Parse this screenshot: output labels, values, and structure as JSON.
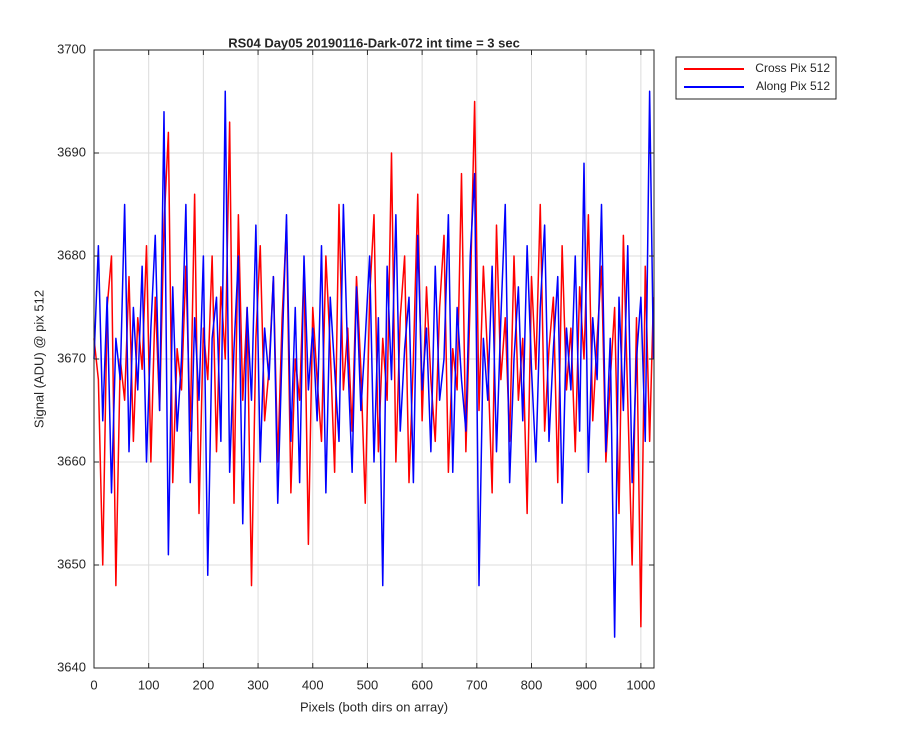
{
  "chart_data": {
    "type": "line",
    "title": "RS04 Day05 20190116-Dark-072 int time = 3 sec",
    "xlabel": "Pixels (both dirs on array)",
    "ylabel": "Signal (ADU) @ pix 512",
    "x": [
      0,
      8,
      16,
      24,
      32,
      40,
      48,
      56,
      64,
      72,
      80,
      88,
      96,
      104,
      112,
      120,
      128,
      136,
      144,
      152,
      160,
      168,
      176,
      184,
      192,
      200,
      208,
      216,
      224,
      232,
      240,
      248,
      256,
      264,
      272,
      280,
      288,
      296,
      304,
      312,
      320,
      328,
      336,
      344,
      352,
      360,
      368,
      376,
      384,
      392,
      400,
      408,
      416,
      424,
      432,
      440,
      448,
      456,
      464,
      472,
      480,
      488,
      496,
      504,
      512,
      520,
      528,
      536,
      544,
      552,
      560,
      568,
      576,
      584,
      592,
      600,
      608,
      616,
      624,
      632,
      640,
      648,
      656,
      664,
      672,
      680,
      688,
      696,
      704,
      712,
      720,
      728,
      736,
      744,
      752,
      760,
      768,
      776,
      784,
      792,
      800,
      808,
      816,
      824,
      832,
      840,
      848,
      856,
      864,
      872,
      880,
      888,
      896,
      904,
      912,
      920,
      928,
      936,
      944,
      952,
      960,
      968,
      976,
      984,
      992,
      1000,
      1008,
      1016,
      1023
    ],
    "series": [
      {
        "name": "Cross Pix 512",
        "color": "#ff0000",
        "values": [
          3672,
          3668,
          3650,
          3675,
          3680,
          3648,
          3670,
          3666,
          3678,
          3662,
          3674,
          3669,
          3681,
          3660,
          3676,
          3665,
          3683,
          3692,
          3658,
          3671,
          3667,
          3679,
          3663,
          3686,
          3655,
          3673,
          3668,
          3680,
          3661,
          3677,
          3670,
          3693,
          3656,
          3684,
          3666,
          3675,
          3648,
          3672,
          3681,
          3664,
          3669,
          3678,
          3660,
          3674,
          3683,
          3657,
          3670,
          3666,
          3679,
          3652,
          3675,
          3668,
          3662,
          3680,
          3671,
          3659,
          3685,
          3667,
          3673,
          3663,
          3678,
          3669,
          3656,
          3676,
          3684,
          3661,
          3672,
          3666,
          3690,
          3660,
          3674,
          3680,
          3658,
          3670,
          3686,
          3664,
          3677,
          3668,
          3662,
          3675,
          3682,
          3659,
          3671,
          3667,
          3688,
          3661,
          3676,
          3695,
          3665,
          3679,
          3670,
          3657,
          3683,
          3668,
          3674,
          3662,
          3680,
          3666,
          3672,
          3655,
          3678,
          3669,
          3685,
          3663,
          3671,
          3676,
          3658,
          3681,
          3667,
          3673,
          3661,
          3677,
          3670,
          3684,
          3664,
          3672,
          3679,
          3660,
          3668,
          3675,
          3655,
          3682,
          3666,
          3650,
          3674,
          3644,
          3679,
          3662,
          3676
        ]
      },
      {
        "name": "Along Pix 512",
        "color": "#0000ff",
        "values": [
          3670,
          3681,
          3664,
          3676,
          3657,
          3672,
          3668,
          3685,
          3661,
          3675,
          3667,
          3679,
          3660,
          3673,
          3682,
          3665,
          3694,
          3651,
          3677,
          3663,
          3670,
          3685,
          3658,
          3674,
          3666,
          3680,
          3649,
          3672,
          3676,
          3662,
          3696,
          3659,
          3671,
          3680,
          3654,
          3675,
          3666,
          3683,
          3660,
          3673,
          3668,
          3678,
          3656,
          3671,
          3684,
          3662,
          3675,
          3658,
          3680,
          3667,
          3673,
          3664,
          3681,
          3657,
          3676,
          3669,
          3662,
          3685,
          3670,
          3659,
          3677,
          3665,
          3672,
          3680,
          3660,
          3674,
          3648,
          3679,
          3668,
          3684,
          3663,
          3671,
          3676,
          3658,
          3682,
          3667,
          3673,
          3661,
          3679,
          3666,
          3670,
          3684,
          3659,
          3675,
          3668,
          3663,
          3680,
          3688,
          3648,
          3672,
          3666,
          3679,
          3661,
          3674,
          3685,
          3658,
          3670,
          3677,
          3664,
          3681,
          3669,
          3660,
          3675,
          3683,
          3662,
          3671,
          3678,
          3656,
          3673,
          3667,
          3680,
          3663,
          3689,
          3659,
          3674,
          3668,
          3685,
          3661,
          3672,
          3643,
          3676,
          3665,
          3681,
          3658,
          3670,
          3676,
          3662,
          3696,
          3670
        ]
      }
    ],
    "xlim": [
      0,
      1024
    ],
    "ylim": [
      3640,
      3700
    ],
    "xticks": [
      0,
      100,
      200,
      300,
      400,
      500,
      600,
      700,
      800,
      900,
      1000
    ],
    "yticks": [
      3640,
      3650,
      3660,
      3670,
      3680,
      3690,
      3700
    ],
    "grid": true,
    "legend": "northeastoutside"
  }
}
